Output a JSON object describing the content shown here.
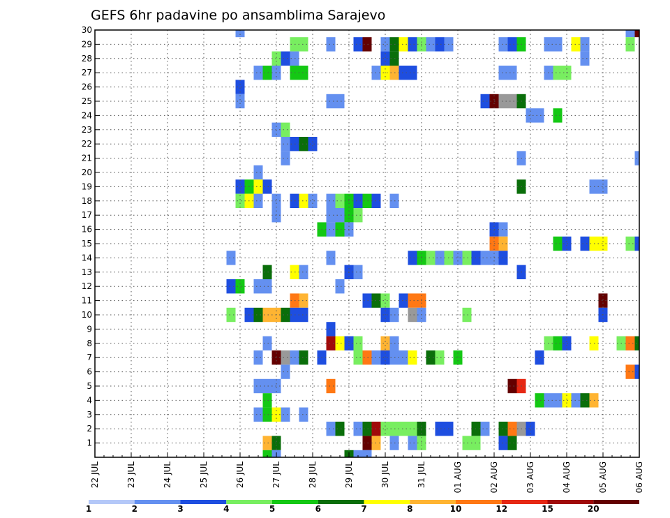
{
  "chart_data": {
    "type": "heatmap",
    "title": "GEFS 6hr padavine po ansamblima Sarajevo",
    "x_tick_labels": [
      "22 JUL",
      "23 JUL",
      "24 JUL",
      "25 JUL",
      "26 JUL",
      "27 JUL",
      "28 JUL",
      "29 JUL",
      "30 JUL",
      "31 JUL",
      "01 AUG",
      "02 AUG",
      "03 AUG",
      "04 AUG",
      "05 AUG",
      "06 AUG"
    ],
    "y_tick_labels": [
      "1",
      "2",
      "3",
      "4",
      "5",
      "6",
      "7",
      "8",
      "9",
      "10",
      "11",
      "12",
      "13",
      "14",
      "15",
      "16",
      "17",
      "18",
      "19",
      "20",
      "21",
      "22",
      "23",
      "24",
      "25",
      "26",
      "27",
      "28",
      "29",
      "30"
    ],
    "x_range_days": [
      0,
      15
    ],
    "y_range_members": [
      0,
      30
    ],
    "grid": "dotted",
    "legend": {
      "placement": "bottom",
      "labels": [
        "1",
        "2",
        "3",
        "4",
        "5",
        "6",
        "7",
        "8",
        "10",
        "12",
        "15",
        "20"
      ],
      "colors": [
        "#b4c8f8",
        "#6490f0",
        "#1e4ee0",
        "#78ee60",
        "#14c814",
        "#0a6e0a",
        "#ffff00",
        "#ffb432",
        "#ff7814",
        "#e62814",
        "#a00a0a",
        "#640000"
      ]
    },
    "cells": [
      [
        30,
        4.0,
        1
      ],
      [
        30,
        14.75,
        1
      ],
      [
        30,
        15.0,
        11
      ],
      [
        29,
        5.5,
        3
      ],
      [
        29,
        5.75,
        3
      ],
      [
        29,
        6.5,
        1
      ],
      [
        29,
        7.25,
        2
      ],
      [
        29,
        7.5,
        11
      ],
      [
        29,
        8.0,
        1
      ],
      [
        29,
        8.25,
        5
      ],
      [
        29,
        8.5,
        6
      ],
      [
        29,
        8.75,
        2
      ],
      [
        29,
        9.0,
        3
      ],
      [
        29,
        9.25,
        1
      ],
      [
        29,
        9.5,
        2
      ],
      [
        29,
        9.75,
        1
      ],
      [
        29,
        11.25,
        1
      ],
      [
        29,
        11.5,
        2
      ],
      [
        29,
        11.75,
        4
      ],
      [
        29,
        12.5,
        1
      ],
      [
        29,
        12.75,
        1
      ],
      [
        29,
        13.25,
        6
      ],
      [
        29,
        13.5,
        1
      ],
      [
        29,
        14.75,
        3
      ],
      [
        28,
        5.0,
        3
      ],
      [
        28,
        5.25,
        2
      ],
      [
        28,
        5.5,
        1
      ],
      [
        28,
        8.0,
        2
      ],
      [
        28,
        8.25,
        5
      ],
      [
        28,
        13.5,
        1
      ],
      [
        27,
        4.5,
        1
      ],
      [
        27,
        4.75,
        4
      ],
      [
        27,
        5.0,
        1
      ],
      [
        27,
        5.5,
        4
      ],
      [
        27,
        5.75,
        4
      ],
      [
        27,
        7.75,
        1
      ],
      [
        27,
        8.0,
        6
      ],
      [
        27,
        8.25,
        7
      ],
      [
        27,
        8.5,
        2
      ],
      [
        27,
        8.75,
        2
      ],
      [
        27,
        11.25,
        1
      ],
      [
        27,
        11.5,
        1
      ],
      [
        27,
        12.5,
        1
      ],
      [
        27,
        12.75,
        3
      ],
      [
        27,
        13.0,
        3
      ],
      [
        26,
        4.0,
        2
      ],
      [
        25,
        4.0,
        1
      ],
      [
        25,
        6.5,
        1
      ],
      [
        25,
        6.75,
        1
      ],
      [
        25,
        10.75,
        2
      ],
      [
        25,
        11.0,
        11
      ],
      [
        25,
        11.25,
        12
      ],
      [
        25,
        11.5,
        13
      ],
      [
        25,
        11.75,
        5
      ],
      [
        24,
        12.0,
        1
      ],
      [
        24,
        12.25,
        1
      ],
      [
        24,
        12.75,
        4
      ],
      [
        23,
        5.0,
        1
      ],
      [
        23,
        5.25,
        3
      ],
      [
        22,
        5.25,
        1
      ],
      [
        22,
        5.5,
        2
      ],
      [
        22,
        5.75,
        5
      ],
      [
        22,
        6.0,
        2
      ],
      [
        21,
        5.25,
        1
      ],
      [
        21,
        11.75,
        1
      ],
      [
        21,
        15.0,
        1
      ],
      [
        20,
        4.5,
        1
      ],
      [
        19,
        4.0,
        2
      ],
      [
        19,
        4.25,
        4
      ],
      [
        19,
        4.5,
        6
      ],
      [
        19,
        4.75,
        2
      ],
      [
        19,
        11.75,
        5
      ],
      [
        19,
        13.75,
        1
      ],
      [
        19,
        14.0,
        1
      ],
      [
        18,
        4.0,
        3
      ],
      [
        18,
        4.25,
        6
      ],
      [
        18,
        4.5,
        1
      ],
      [
        18,
        5.0,
        1
      ],
      [
        18,
        5.5,
        2
      ],
      [
        18,
        5.75,
        6
      ],
      [
        18,
        6.0,
        1
      ],
      [
        18,
        6.5,
        1
      ],
      [
        18,
        6.75,
        3
      ],
      [
        18,
        7.0,
        4
      ],
      [
        18,
        7.25,
        2
      ],
      [
        18,
        7.5,
        4
      ],
      [
        18,
        7.75,
        2
      ],
      [
        18,
        8.25,
        1
      ],
      [
        17,
        5.0,
        1
      ],
      [
        17,
        6.5,
        1
      ],
      [
        17,
        6.75,
        1
      ],
      [
        17,
        7.0,
        4
      ],
      [
        17,
        7.25,
        3
      ],
      [
        16,
        6.25,
        4
      ],
      [
        16,
        6.5,
        1
      ],
      [
        16,
        6.75,
        4
      ],
      [
        16,
        7.0,
        1
      ],
      [
        16,
        11.0,
        2
      ],
      [
        16,
        11.25,
        1
      ],
      [
        15,
        11.0,
        8
      ],
      [
        15,
        11.25,
        7
      ],
      [
        15,
        12.75,
        4
      ],
      [
        15,
        13.0,
        2
      ],
      [
        15,
        13.5,
        2
      ],
      [
        15,
        13.75,
        6
      ],
      [
        15,
        14.0,
        6
      ],
      [
        15,
        14.75,
        3
      ],
      [
        15,
        15.0,
        2
      ],
      [
        14,
        3.75,
        1
      ],
      [
        14,
        6.5,
        1
      ],
      [
        14,
        8.75,
        2
      ],
      [
        14,
        9.0,
        4
      ],
      [
        14,
        9.25,
        3
      ],
      [
        14,
        9.5,
        1
      ],
      [
        14,
        9.75,
        3
      ],
      [
        14,
        10.0,
        1
      ],
      [
        14,
        10.25,
        3
      ],
      [
        14,
        10.5,
        2
      ],
      [
        14,
        10.75,
        1
      ],
      [
        14,
        11.0,
        1
      ],
      [
        14,
        11.25,
        2
      ],
      [
        13,
        4.75,
        5
      ],
      [
        13,
        5.5,
        6
      ],
      [
        13,
        5.75,
        1
      ],
      [
        13,
        7.0,
        2
      ],
      [
        13,
        7.25,
        1
      ],
      [
        13,
        11.75,
        2
      ],
      [
        12,
        3.75,
        2
      ],
      [
        12,
        4.0,
        4
      ],
      [
        12,
        4.5,
        1
      ],
      [
        12,
        4.75,
        1
      ],
      [
        12,
        6.75,
        1
      ],
      [
        11,
        5.5,
        8
      ],
      [
        11,
        5.75,
        7
      ],
      [
        11,
        7.5,
        2
      ],
      [
        11,
        7.75,
        5
      ],
      [
        11,
        8.0,
        3
      ],
      [
        11,
        8.5,
        2
      ],
      [
        11,
        8.75,
        8
      ],
      [
        11,
        9.0,
        8
      ],
      [
        11,
        14.0,
        11
      ],
      [
        10,
        3.75,
        3
      ],
      [
        10,
        4.25,
        2
      ],
      [
        10,
        4.5,
        5
      ],
      [
        10,
        4.75,
        7
      ],
      [
        10,
        5.0,
        7
      ],
      [
        10,
        5.25,
        5
      ],
      [
        10,
        5.5,
        2
      ],
      [
        10,
        5.75,
        2
      ],
      [
        10,
        8.0,
        2
      ],
      [
        10,
        8.25,
        1
      ],
      [
        10,
        8.75,
        12
      ],
      [
        10,
        9.0,
        1
      ],
      [
        10,
        10.25,
        3
      ],
      [
        10,
        14.0,
        2
      ],
      [
        9,
        6.5,
        2
      ],
      [
        8,
        4.75,
        1
      ],
      [
        8,
        6.5,
        10
      ],
      [
        8,
        6.75,
        6
      ],
      [
        8,
        7.0,
        2
      ],
      [
        8,
        7.25,
        3
      ],
      [
        8,
        8.0,
        7
      ],
      [
        8,
        8.25,
        1
      ],
      [
        8,
        12.5,
        3
      ],
      [
        8,
        12.75,
        4
      ],
      [
        8,
        13.0,
        2
      ],
      [
        8,
        13.75,
        6
      ],
      [
        8,
        14.5,
        3
      ],
      [
        8,
        14.75,
        8
      ],
      [
        8,
        15.0,
        5
      ],
      [
        7,
        4.5,
        1
      ],
      [
        7,
        5.0,
        11
      ],
      [
        7,
        5.25,
        13
      ],
      [
        7,
        5.5,
        1
      ],
      [
        7,
        5.75,
        5
      ],
      [
        7,
        6.25,
        2
      ],
      [
        7,
        7.25,
        3
      ],
      [
        7,
        7.5,
        8
      ],
      [
        7,
        7.75,
        1
      ],
      [
        7,
        8.0,
        2
      ],
      [
        7,
        8.25,
        1
      ],
      [
        7,
        8.5,
        1
      ],
      [
        7,
        8.75,
        6
      ],
      [
        7,
        9.25,
        5
      ],
      [
        7,
        9.5,
        3
      ],
      [
        7,
        10.0,
        4
      ],
      [
        7,
        12.25,
        2
      ],
      [
        6,
        5.25,
        1
      ],
      [
        6,
        14.75,
        8
      ],
      [
        6,
        15.0,
        2
      ],
      [
        5,
        4.5,
        1
      ],
      [
        5,
        4.75,
        1
      ],
      [
        5,
        5.0,
        1
      ],
      [
        5,
        6.5,
        8
      ],
      [
        5,
        11.5,
        11
      ],
      [
        5,
        11.75,
        9
      ],
      [
        4,
        12.25,
        4
      ],
      [
        4,
        12.5,
        1
      ],
      [
        4,
        12.75,
        1
      ],
      [
        4,
        13.0,
        6
      ],
      [
        4,
        13.25,
        1
      ],
      [
        4,
        13.5,
        5
      ],
      [
        4,
        13.75,
        7
      ],
      [
        3,
        4.5,
        1
      ],
      [
        4,
        4.75,
        4
      ],
      [
        3,
        4.75,
        4
      ],
      [
        3,
        5.0,
        6
      ],
      [
        3,
        5.25,
        1
      ],
      [
        3,
        5.75,
        1
      ],
      [
        2,
        6.5,
        1
      ],
      [
        2,
        6.75,
        5
      ],
      [
        2,
        7.25,
        1
      ],
      [
        2,
        7.5,
        5
      ],
      [
        2,
        7.75,
        10
      ],
      [
        2,
        8.0,
        3
      ],
      [
        2,
        8.25,
        3
      ],
      [
        2,
        8.5,
        3
      ],
      [
        2,
        8.75,
        3
      ],
      [
        2,
        9.0,
        5
      ],
      [
        2,
        9.5,
        2
      ],
      [
        2,
        9.75,
        2
      ],
      [
        2,
        10.5,
        5
      ],
      [
        2,
        10.75,
        1
      ],
      [
        2,
        11.25,
        5
      ],
      [
        2,
        11.5,
        8
      ],
      [
        2,
        11.75,
        12
      ],
      [
        2,
        12.0,
        2
      ],
      [
        1,
        4.75,
        7
      ],
      [
        1,
        5.0,
        5
      ],
      [
        1,
        7.5,
        11
      ],
      [
        1,
        7.75,
        7
      ],
      [
        1,
        8.25,
        1
      ],
      [
        1,
        8.75,
        1
      ],
      [
        1,
        9.0,
        3
      ],
      [
        1,
        10.25,
        3
      ],
      [
        1,
        10.5,
        3
      ],
      [
        1,
        11.25,
        2
      ],
      [
        1,
        11.5,
        5
      ],
      [
        0,
        4.75,
        4
      ],
      [
        0,
        5.0,
        1
      ],
      [
        0,
        7.0,
        5
      ],
      [
        0,
        7.25,
        1
      ],
      [
        0,
        7.5,
        1
      ]
    ]
  }
}
